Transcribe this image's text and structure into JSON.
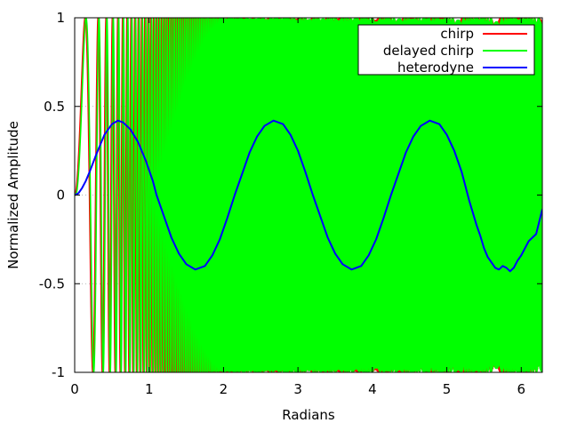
{
  "chart_data": {
    "type": "line",
    "title": "",
    "xlabel": "Radians",
    "ylabel": "Normalized Amplitude",
    "xlim": [
      0,
      6.283185307
    ],
    "ylim": [
      -1,
      1
    ],
    "x_ticks": [
      0,
      1,
      2,
      3,
      4,
      5,
      6
    ],
    "x_tick_labels": [
      "0",
      "1",
      "2",
      "3",
      "4",
      "5",
      "6"
    ],
    "y_ticks": [
      1,
      0.5,
      0,
      -0.5,
      -1
    ],
    "y_tick_labels": [
      "1",
      "0.5",
      "0",
      "-0.5",
      "-1"
    ],
    "grid": true,
    "grid_style": "dotted",
    "legend_position": "top-right",
    "series": [
      {
        "name": "chirp",
        "color": "#ff0000",
        "function": "sin(1000*x^2/(2*2*pi))",
        "description": "linear chirp, frequency rising from 0 to ~1000 cycles per 2pi"
      },
      {
        "name": "delayed chirp",
        "color": "#00ff00",
        "function": "sin(1000*x^2/(2*2*pi) + 0.1*1000*x/(2*pi) ... )",
        "description": "chirp with small time delay"
      },
      {
        "name": "heterodyne",
        "color": "#0000ff",
        "amplitude": 0.42,
        "period": 2.1,
        "points": [
          [
            0.0,
            0.0
          ],
          [
            0.05,
            0.01
          ],
          [
            0.1,
            0.04
          ],
          [
            0.15,
            0.08
          ],
          [
            0.2,
            0.13
          ],
          [
            0.3,
            0.24
          ],
          [
            0.4,
            0.34
          ],
          [
            0.5,
            0.4
          ],
          [
            0.58,
            0.42
          ],
          [
            0.65,
            0.41
          ],
          [
            0.75,
            0.37
          ],
          [
            0.85,
            0.3
          ],
          [
            0.95,
            0.2
          ],
          [
            1.05,
            0.08
          ],
          [
            1.1,
            0.0
          ],
          [
            1.2,
            -0.12
          ],
          [
            1.3,
            -0.24
          ],
          [
            1.4,
            -0.33
          ],
          [
            1.5,
            -0.39
          ],
          [
            1.62,
            -0.42
          ],
          [
            1.75,
            -0.4
          ],
          [
            1.85,
            -0.34
          ],
          [
            1.95,
            -0.25
          ],
          [
            2.05,
            -0.13
          ],
          [
            2.15,
            0.0
          ],
          [
            2.25,
            0.12
          ],
          [
            2.35,
            0.24
          ],
          [
            2.45,
            0.33
          ],
          [
            2.55,
            0.39
          ],
          [
            2.67,
            0.42
          ],
          [
            2.8,
            0.4
          ],
          [
            2.9,
            0.34
          ],
          [
            3.0,
            0.25
          ],
          [
            3.1,
            0.13
          ],
          [
            3.2,
            0.0
          ],
          [
            3.3,
            -0.12
          ],
          [
            3.4,
            -0.24
          ],
          [
            3.5,
            -0.33
          ],
          [
            3.6,
            -0.39
          ],
          [
            3.72,
            -0.42
          ],
          [
            3.85,
            -0.4
          ],
          [
            3.95,
            -0.34
          ],
          [
            4.05,
            -0.25
          ],
          [
            4.15,
            -0.13
          ],
          [
            4.25,
            0.0
          ],
          [
            4.35,
            0.12
          ],
          [
            4.45,
            0.24
          ],
          [
            4.55,
            0.33
          ],
          [
            4.65,
            0.39
          ],
          [
            4.77,
            0.42
          ],
          [
            4.9,
            0.4
          ],
          [
            5.0,
            0.34
          ],
          [
            5.1,
            0.25
          ],
          [
            5.2,
            0.13
          ],
          [
            5.25,
            0.05
          ],
          [
            5.3,
            -0.03
          ],
          [
            5.35,
            -0.1
          ],
          [
            5.4,
            -0.17
          ],
          [
            5.45,
            -0.23
          ],
          [
            5.5,
            -0.3
          ],
          [
            5.55,
            -0.35
          ],
          [
            5.6,
            -0.38
          ],
          [
            5.65,
            -0.41
          ],
          [
            5.7,
            -0.42
          ],
          [
            5.75,
            -0.4
          ],
          [
            5.8,
            -0.41
          ],
          [
            5.85,
            -0.43
          ],
          [
            5.9,
            -0.41
          ],
          [
            5.95,
            -0.37
          ],
          [
            6.0,
            -0.34
          ],
          [
            6.05,
            -0.3
          ],
          [
            6.1,
            -0.26
          ],
          [
            6.15,
            -0.24
          ],
          [
            6.2,
            -0.22
          ],
          [
            6.283,
            -0.08
          ]
        ]
      }
    ]
  }
}
